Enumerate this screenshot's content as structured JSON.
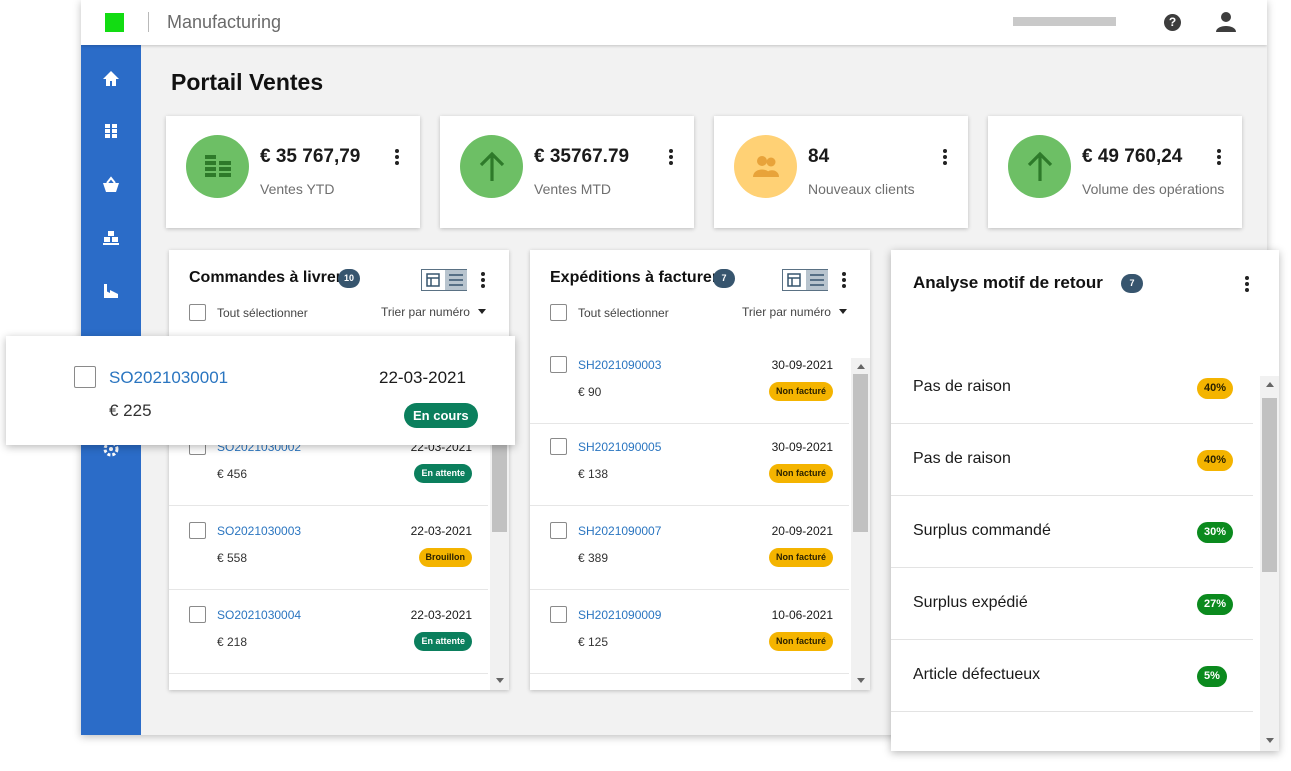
{
  "header": {
    "app_title": "Manufacturing",
    "brand_color": "#12dc12",
    "help_label": "?"
  },
  "sidebar": {
    "color": "#2b6cc8",
    "items": [
      {
        "icon": "home-icon"
      },
      {
        "icon": "boxes-icon"
      },
      {
        "icon": "basket-icon"
      },
      {
        "icon": "pallet-icon"
      },
      {
        "icon": "factory-icon"
      },
      {
        "icon": "settings-icon"
      }
    ]
  },
  "page": {
    "title": "Portail Ventes"
  },
  "kpis": [
    {
      "value": "€ 35 767,79",
      "label": "Ventes YTD",
      "icon": "stacked-bars-icon",
      "color": "#6dbf65"
    },
    {
      "value": "€ 35767.79",
      "label": "Ventes MTD",
      "icon": "arrow-up-icon",
      "color": "#6dbf65"
    },
    {
      "value": "84",
      "label": "Nouveaux clients",
      "icon": "customers-icon",
      "color": "#ffd175"
    },
    {
      "value": "€ 49 760,24",
      "label": "Volume des opérations",
      "icon": "arrow-up-icon",
      "color": "#6dbf65"
    }
  ],
  "orders": {
    "title": "Commandes à livrer",
    "count": "10",
    "select_all": "Tout sélectionner",
    "sort": "Trier par numéro",
    "rows": [
      {
        "id": "SO2021030002",
        "date": "22-03-2021",
        "amount": "€ 456",
        "status": "En attente",
        "tone": "green"
      },
      {
        "id": "SO2021030003",
        "date": "22-03-2021",
        "amount": "€ 558",
        "status": "Brouillon",
        "tone": "amber"
      },
      {
        "id": "SO2021030004",
        "date": "22-03-2021",
        "amount": "€ 218",
        "status": "En attente",
        "tone": "green"
      }
    ]
  },
  "floating_card": {
    "id": "SO2021030001",
    "date": "22-03-2021",
    "amount": "€ 225",
    "status": "En cours"
  },
  "shipments": {
    "title": "Expéditions à facturer",
    "count": "7",
    "select_all": "Tout sélectionner",
    "sort": "Trier par numéro",
    "rows": [
      {
        "id": "SH2021090003",
        "date": "30-09-2021",
        "amount": "€ 90",
        "status": "Non facturé"
      },
      {
        "id": "SH2021090005",
        "date": "30-09-2021",
        "amount": "€ 138",
        "status": "Non facturé"
      },
      {
        "id": "SH2021090007",
        "date": "20-09-2021",
        "amount": "€ 389",
        "status": "Non facturé"
      },
      {
        "id": "SH2021090009",
        "date": "10-06-2021",
        "amount": "€ 125",
        "status": "Non facturé"
      }
    ]
  },
  "returns": {
    "title": "Analyse motif de retour",
    "count": "7",
    "rows": [
      {
        "label": "Pas de raison",
        "pct": "40%",
        "tone": "amber"
      },
      {
        "label": "Pas de raison",
        "pct": "40%",
        "tone": "amber"
      },
      {
        "label": "Surplus commandé",
        "pct": "30%",
        "tone": "green"
      },
      {
        "label": "Surplus expédié",
        "pct": "27%",
        "tone": "green"
      },
      {
        "label": "Article défectueux",
        "pct": "5%",
        "tone": "green"
      }
    ]
  }
}
